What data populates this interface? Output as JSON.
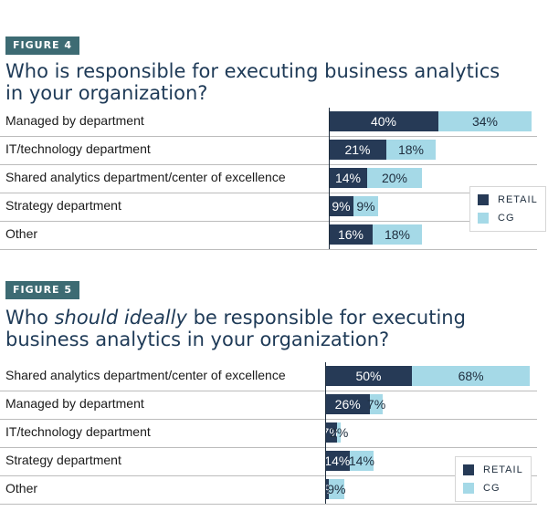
{
  "chart_data": [
    {
      "type": "bar",
      "stacked": true,
      "orientation": "horizontal",
      "figure_tag": "FIGURE 4",
      "title": "Who is responsible for executing business analytics in your organization?",
      "title_lines": [
        "Who is responsible for executing business analytics",
        "in your organization?"
      ],
      "categories": [
        "Managed by department",
        "IT/technology department",
        "Shared analytics department/center of excellence",
        "Strategy department",
        "Other"
      ],
      "series": [
        {
          "name": "RETAIL",
          "values": [
            40,
            21,
            14,
            9,
            16
          ],
          "labels": [
            "40%",
            "21%",
            "14%",
            "9%",
            "16%"
          ],
          "color": "#263a56"
        },
        {
          "name": "CG",
          "values": [
            34,
            18,
            20,
            9,
            18
          ],
          "labels": [
            "34%",
            "18%",
            "20%",
            "9%",
            "18%"
          ],
          "color": "#a5d9e7"
        }
      ],
      "legend": {
        "position": "right",
        "items": [
          "RETAIL",
          "CG"
        ]
      },
      "grid": false
    },
    {
      "type": "bar",
      "stacked": true,
      "orientation": "horizontal",
      "figure_tag": "FIGURE 5",
      "title": "Who should ideally be responsible for executing business analytics in your organization?",
      "title_lines": [
        [
          "Who ",
          "should ideally",
          " be responsible for executing"
        ],
        "business analytics in your organization?"
      ],
      "categories": [
        "Shared analytics department/center of excellence",
        "Managed by department",
        "IT/technology department",
        "Strategy department",
        "Other"
      ],
      "series": [
        {
          "name": "RETAIL",
          "values": [
            50,
            26,
            7,
            14,
            2
          ],
          "labels": [
            "50%",
            "26%",
            "7%",
            "14%",
            "2%"
          ],
          "color": "#263a56"
        },
        {
          "name": "CG",
          "values": [
            68,
            7,
            2,
            14,
            9
          ],
          "labels": [
            "68%",
            "7%",
            "2%",
            "14%",
            "9%"
          ],
          "color": "#a5d9e7"
        }
      ],
      "legend": {
        "position": "bottom-right",
        "items": [
          "RETAIL",
          "CG"
        ]
      },
      "grid": false
    }
  ]
}
